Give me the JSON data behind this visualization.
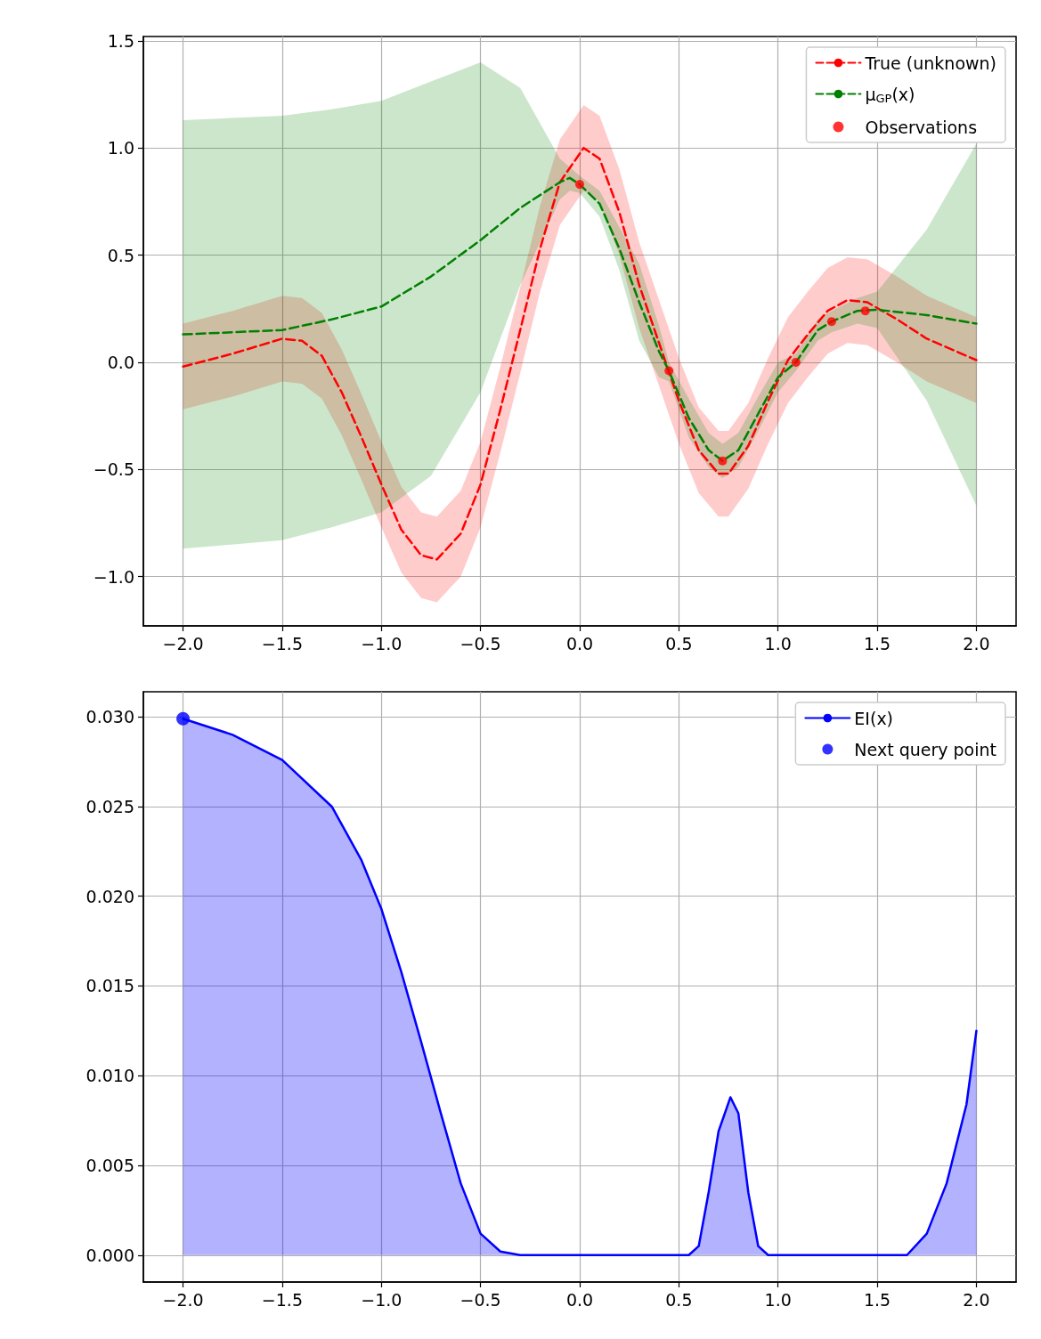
{
  "chart_data": [
    {
      "type": "line",
      "legend": "top right",
      "grid": true,
      "xlim": [
        -2.2,
        2.2
      ],
      "xticks": [
        {
          "value": -2,
          "label": "−2.0"
        },
        {
          "value": -1.5,
          "label": "−1.5"
        },
        {
          "value": -1,
          "label": "−1.0"
        },
        {
          "value": -0.5,
          "label": "−0.5"
        },
        {
          "value": 0,
          "label": "0.0"
        },
        {
          "value": 0.5,
          "label": "0.5"
        },
        {
          "value": 1,
          "label": "1.0"
        },
        {
          "value": 1.5,
          "label": "1.5"
        },
        {
          "value": 2,
          "label": "2.0"
        }
      ],
      "ylim": [
        -1.23,
        1.52
      ],
      "yticks": [
        {
          "value": -1,
          "label": "−1.0"
        },
        {
          "value": -0.5,
          "label": "−0.5"
        },
        {
          "value": 0,
          "label": "0.0"
        },
        {
          "value": 0.5,
          "label": "0.5"
        },
        {
          "value": 1,
          "label": "1.0"
        },
        {
          "value": 1.5,
          "label": "1.5"
        }
      ],
      "series": [
        {
          "name": "True (unknown)",
          "color": "#ff0000",
          "line_style": "dashed",
          "x": [
            -2,
            -1.75,
            -1.5,
            -1.4,
            -1.3,
            -1.2,
            -1.1,
            -1,
            -0.9,
            -0.8,
            -0.72,
            -0.6,
            -0.5,
            -0.4,
            -0.3,
            -0.2,
            -0.1,
            0.02,
            0.1,
            0.2,
            0.3,
            0.4,
            0.5,
            0.6,
            0.7,
            0.75,
            0.85,
            0.95,
            1.05,
            1.15,
            1.25,
            1.35,
            1.45,
            1.6,
            1.75,
            1.9,
            2
          ],
          "values": [
            -0.02,
            0.04,
            0.11,
            0.1,
            0.03,
            -0.14,
            -0.35,
            -0.57,
            -0.78,
            -0.9,
            -0.92,
            -0.8,
            -0.57,
            -0.22,
            0.15,
            0.53,
            0.84,
            1.0,
            0.95,
            0.7,
            0.36,
            0.09,
            -0.18,
            -0.41,
            -0.52,
            -0.52,
            -0.39,
            -0.18,
            0.01,
            0.13,
            0.24,
            0.29,
            0.28,
            0.2,
            0.11,
            0.05,
            0.01
          ],
          "lower": [
            -0.22,
            -0.16,
            -0.09,
            -0.1,
            -0.17,
            -0.34,
            -0.55,
            -0.77,
            -0.98,
            -1.1,
            -1.12,
            -1.0,
            -0.77,
            -0.42,
            -0.05,
            0.33,
            0.64,
            0.8,
            0.75,
            0.5,
            0.16,
            -0.11,
            -0.38,
            -0.61,
            -0.72,
            -0.72,
            -0.59,
            -0.38,
            -0.19,
            -0.07,
            0.04,
            0.09,
            0.08,
            0.0,
            -0.09,
            -0.15,
            -0.19
          ],
          "upper": [
            0.18,
            0.24,
            0.31,
            0.3,
            0.23,
            0.06,
            -0.15,
            -0.37,
            -0.58,
            -0.7,
            -0.72,
            -0.6,
            -0.37,
            -0.02,
            0.35,
            0.73,
            1.04,
            1.2,
            1.15,
            0.9,
            0.56,
            0.29,
            0.02,
            -0.21,
            -0.32,
            -0.32,
            -0.19,
            0.02,
            0.21,
            0.33,
            0.44,
            0.49,
            0.48,
            0.4,
            0.31,
            0.25,
            0.21
          ]
        },
        {
          "name": "μ$_{GP}$(x)",
          "color": "#008000",
          "line_style": "dashed",
          "x": [
            -2,
            -1.5,
            -1.25,
            -1,
            -0.75,
            -0.5,
            -0.3,
            -0.1,
            -0.05,
            0,
            0.1,
            0.2,
            0.3,
            0.4,
            0.45,
            0.55,
            0.65,
            0.72,
            0.8,
            0.9,
            1,
            1.09,
            1.2,
            1.27,
            1.4,
            1.5,
            1.75,
            2
          ],
          "values": [
            0.13,
            0.15,
            0.2,
            0.26,
            0.4,
            0.57,
            0.72,
            0.84,
            0.86,
            0.83,
            0.74,
            0.53,
            0.28,
            0.05,
            -0.04,
            -0.26,
            -0.41,
            -0.46,
            -0.41,
            -0.24,
            -0.07,
            0.0,
            0.15,
            0.19,
            0.24,
            0.245,
            0.22,
            0.18
          ],
          "lower": [
            -0.87,
            -0.83,
            -0.77,
            -0.7,
            -0.53,
            -0.14,
            0.36,
            0.76,
            0.8,
            0.79,
            0.68,
            0.43,
            0.1,
            -0.07,
            -0.09,
            -0.35,
            -0.49,
            -0.54,
            -0.49,
            -0.32,
            -0.14,
            -0.04,
            0.1,
            0.14,
            0.18,
            0.16,
            -0.18,
            -0.67
          ],
          "upper": [
            1.13,
            1.15,
            1.18,
            1.22,
            1.31,
            1.4,
            1.28,
            0.95,
            0.91,
            0.87,
            0.8,
            0.63,
            0.46,
            0.17,
            0.0,
            -0.17,
            -0.33,
            -0.38,
            -0.33,
            -0.16,
            0.0,
            0.04,
            0.2,
            0.24,
            0.3,
            0.33,
            0.62,
            1.02
          ]
        },
        {
          "name": "Observations",
          "type": "scatter",
          "marker": "circle",
          "color": "#ff0000",
          "x": [
            0,
            0.45,
            0.72,
            1.09,
            1.27,
            1.44
          ],
          "values": [
            0.83,
            -0.04,
            -0.46,
            0.0,
            0.19,
            0.24
          ]
        }
      ]
    },
    {
      "type": "area",
      "legend": "top right",
      "grid": true,
      "xlim": [
        -2.2,
        2.2
      ],
      "xticks": [
        {
          "value": -2,
          "label": "−2.0"
        },
        {
          "value": -1.5,
          "label": "−1.5"
        },
        {
          "value": -1,
          "label": "−1.0"
        },
        {
          "value": -0.5,
          "label": "−0.5"
        },
        {
          "value": 0,
          "label": "0.0"
        },
        {
          "value": 0.5,
          "label": "0.5"
        },
        {
          "value": 1,
          "label": "1.0"
        },
        {
          "value": 1.5,
          "label": "1.5"
        },
        {
          "value": 2,
          "label": "2.0"
        }
      ],
      "ylim": [
        -0.0015,
        0.0314
      ],
      "yticks": [
        {
          "value": 0,
          "label": "0.000"
        },
        {
          "value": 0.005,
          "label": "0.005"
        },
        {
          "value": 0.01,
          "label": "0.010"
        },
        {
          "value": 0.015,
          "label": "0.015"
        },
        {
          "value": 0.02,
          "label": "0.020"
        },
        {
          "value": 0.025,
          "label": "0.025"
        },
        {
          "value": 0.03,
          "label": "0.030"
        }
      ],
      "series": [
        {
          "name": "EI(x)",
          "color": "#0000ff",
          "x": [
            -2,
            -1.75,
            -1.5,
            -1.25,
            -1.1,
            -1,
            -0.9,
            -0.8,
            -0.7,
            -0.6,
            -0.5,
            -0.4,
            -0.3,
            0.55,
            0.6,
            0.65,
            0.7,
            0.76,
            0.8,
            0.85,
            0.9,
            0.95,
            1.65,
            1.75,
            1.85,
            1.95,
            2
          ],
          "values": [
            0.0299,
            0.029,
            0.0276,
            0.025,
            0.022,
            0.0193,
            0.0158,
            0.0119,
            0.0079,
            0.004,
            0.0012,
            0.0002,
            0,
            0,
            0.0005,
            0.0035,
            0.0069,
            0.0088,
            0.0079,
            0.0035,
            0.0005,
            0,
            0,
            0.0012,
            0.004,
            0.0084,
            0.0125
          ]
        },
        {
          "name": "Next query point",
          "type": "scatter",
          "marker": "circle",
          "color": "#0000ff",
          "x": [
            -2
          ],
          "values": [
            0.0299
          ]
        }
      ]
    }
  ]
}
